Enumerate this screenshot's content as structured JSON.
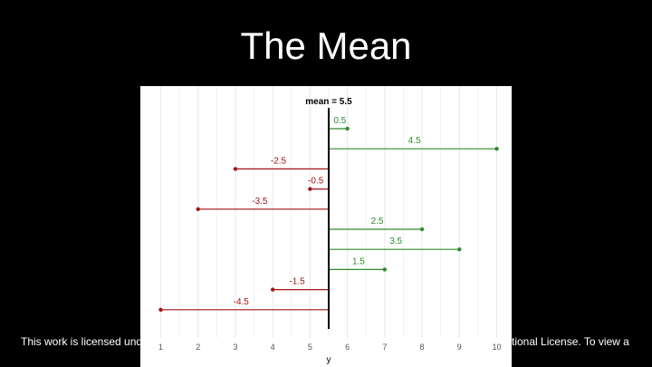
{
  "slide": {
    "title": "The Mean",
    "footer_left": "This work is licensed und",
    "footer_right": "tional License. To view a"
  },
  "chart_data": {
    "type": "deviation-lollipop",
    "title": "",
    "annotation": "mean = 5.5",
    "mean": 5.5,
    "xlabel": "y",
    "ylabel": "",
    "xlim": [
      0.6,
      10.4
    ],
    "x_ticks": [
      1,
      2,
      3,
      4,
      5,
      6,
      7,
      8,
      9,
      10
    ],
    "grid": true,
    "legend": "none",
    "points": [
      {
        "value": 6,
        "deviation": "0.5"
      },
      {
        "value": 10,
        "deviation": "4.5"
      },
      {
        "value": 3,
        "deviation": "-2.5"
      },
      {
        "value": 5,
        "deviation": "-0.5"
      },
      {
        "value": 2,
        "deviation": "-3.5"
      },
      {
        "value": 8,
        "deviation": "2.5"
      },
      {
        "value": 9,
        "deviation": "3.5"
      },
      {
        "value": 7,
        "deviation": "1.5"
      },
      {
        "value": 4,
        "deviation": "-1.5"
      },
      {
        "value": 1,
        "deviation": "-4.5"
      }
    ],
    "colors": {
      "positive": "#2e8b2e",
      "negative": "#a31515",
      "mean_line": "#000000",
      "grid": "#ebebeb",
      "text": "#555555"
    }
  }
}
